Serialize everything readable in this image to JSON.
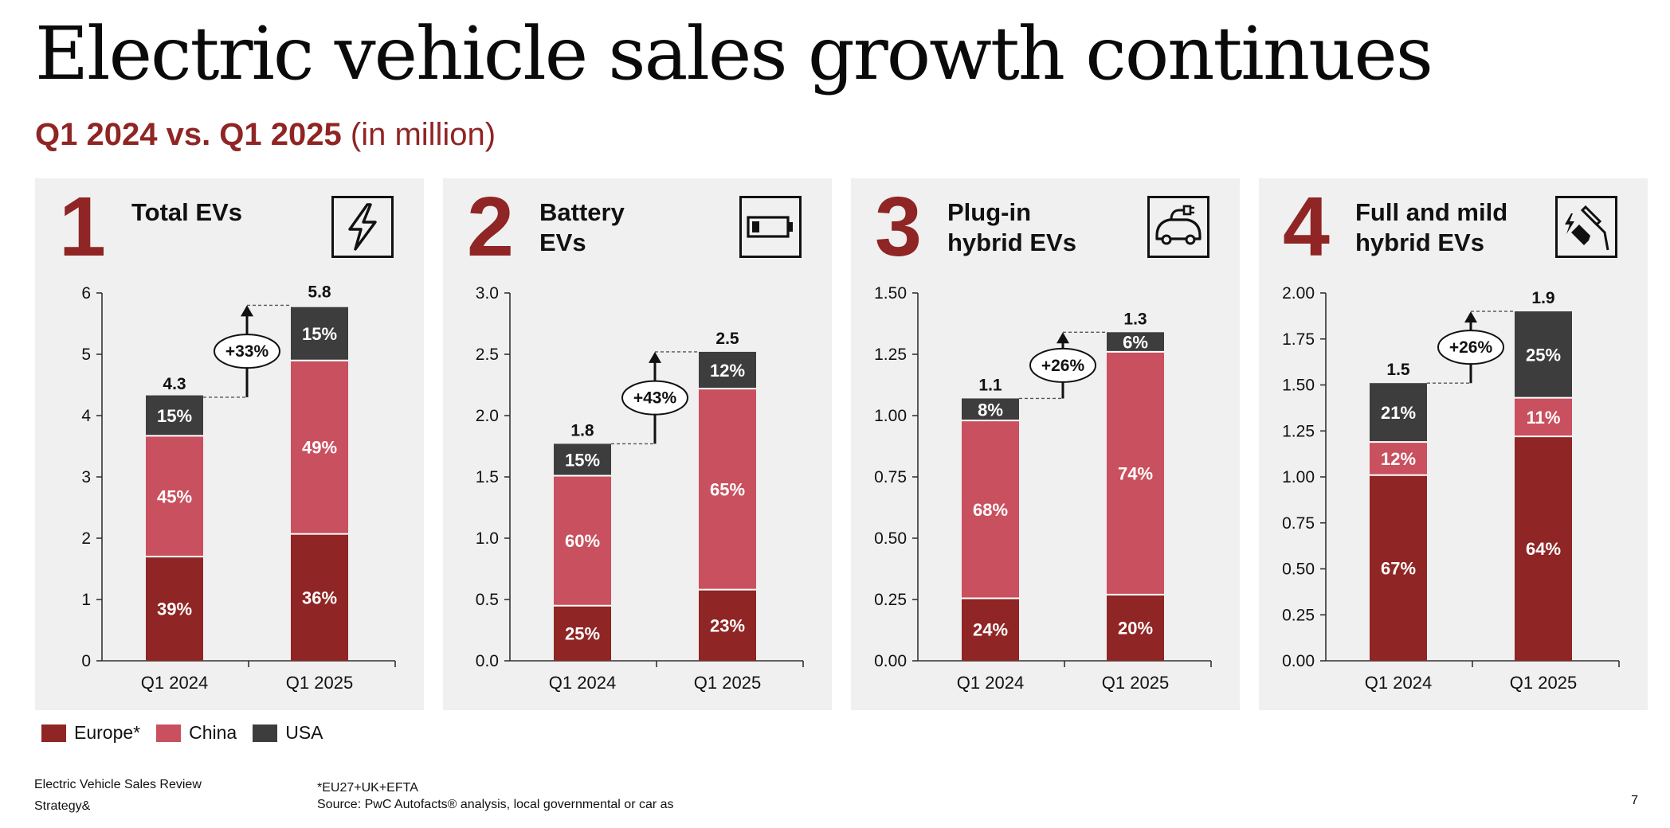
{
  "title": "Electric vehicle sales growth continues",
  "subtitle": {
    "bold": "Q1 2024 vs. Q1 2025",
    "regular": "(in million)"
  },
  "colors": {
    "Europe": "#8f2524",
    "China": "#c9505e",
    "USA": "#3d3d3d",
    "brand": "#8f2524",
    "panel_bg": "#f0f0f0"
  },
  "panels": [
    {
      "number": "1",
      "title_lines": [
        "Total EVs"
      ],
      "icon": "lightning-icon"
    },
    {
      "number": "2",
      "title_lines": [
        "Battery",
        "EVs"
      ],
      "icon": "battery-icon"
    },
    {
      "number": "3",
      "title_lines": [
        "Plug-in",
        "hybrid EVs"
      ],
      "icon": "plug-car-icon"
    },
    {
      "number": "4",
      "title_lines": [
        "Full and mild",
        "hybrid EVs"
      ],
      "icon": "fuel-electric-icon"
    }
  ],
  "chart_data": [
    {
      "type": "bar",
      "stacked": true,
      "categories": [
        "Q1 2024",
        "Q1 2025"
      ],
      "ylim": [
        0,
        6
      ],
      "yticks": [
        "0",
        "1",
        "2",
        "3",
        "4",
        "5",
        "6"
      ],
      "totals": [
        4.3,
        5.8
      ],
      "total_labels": [
        "4.3",
        "5.8"
      ],
      "series": [
        {
          "name": "Europe*",
          "values": [
            1.7,
            2.07
          ],
          "labels": [
            "39%",
            "36%"
          ]
        },
        {
          "name": "China",
          "values": [
            1.97,
            2.83
          ],
          "labels": [
            "45%",
            "49%"
          ]
        },
        {
          "name": "USA",
          "values": [
            0.66,
            0.87
          ],
          "labels": [
            "15%",
            "15%"
          ]
        }
      ],
      "growth": "+33%"
    },
    {
      "type": "bar",
      "stacked": true,
      "categories": [
        "Q1 2024",
        "Q1 2025"
      ],
      "ylim": [
        0,
        3
      ],
      "yticks": [
        "0.0",
        "0.5",
        "1.0",
        "1.5",
        "2.0",
        "2.5",
        "3.0"
      ],
      "totals": [
        1.77,
        2.52
      ],
      "total_labels": [
        "1.8",
        "2.5"
      ],
      "series": [
        {
          "name": "Europe*",
          "values": [
            0.45,
            0.58
          ],
          "labels": [
            "25%",
            "23%"
          ]
        },
        {
          "name": "China",
          "values": [
            1.06,
            1.64
          ],
          "labels": [
            "60%",
            "65%"
          ]
        },
        {
          "name": "USA",
          "values": [
            0.26,
            0.3
          ],
          "labels": [
            "15%",
            "12%"
          ]
        }
      ],
      "growth": "+43%"
    },
    {
      "type": "bar",
      "stacked": true,
      "categories": [
        "Q1 2024",
        "Q1 2025"
      ],
      "ylim": [
        0,
        1.5
      ],
      "yticks": [
        "0.00",
        "0.25",
        "0.50",
        "0.75",
        "1.00",
        "1.25",
        "1.50"
      ],
      "totals": [
        1.07,
        1.34
      ],
      "total_labels": [
        "1.1",
        "1.3"
      ],
      "series": [
        {
          "name": "Europe*",
          "values": [
            0.255,
            0.27
          ],
          "labels": [
            "24%",
            "20%"
          ]
        },
        {
          "name": "China",
          "values": [
            0.725,
            0.99
          ],
          "labels": [
            "68%",
            "74%"
          ]
        },
        {
          "name": "USA",
          "values": [
            0.09,
            0.08
          ],
          "labels": [
            "8%",
            "6%"
          ]
        }
      ],
      "growth": "+26%"
    },
    {
      "type": "bar",
      "stacked": true,
      "categories": [
        "Q1 2024",
        "Q1 2025"
      ],
      "ylim": [
        0,
        2
      ],
      "yticks": [
        "0.00",
        "0.25",
        "0.50",
        "0.75",
        "1.00",
        "1.25",
        "1.50",
        "1.75",
        "2.00"
      ],
      "totals": [
        1.51,
        1.9
      ],
      "total_labels": [
        "1.5",
        "1.9"
      ],
      "series": [
        {
          "name": "Europe*",
          "values": [
            1.01,
            1.22
          ],
          "labels": [
            "67%",
            "64%"
          ]
        },
        {
          "name": "China",
          "values": [
            0.18,
            0.21
          ],
          "labels": [
            "12%",
            "11%"
          ]
        },
        {
          "name": "USA",
          "values": [
            0.32,
            0.47
          ],
          "labels": [
            "21%",
            "25%"
          ]
        }
      ],
      "growth": "+26%"
    }
  ],
  "legend": [
    {
      "label": "Europe*",
      "color": "#8f2524"
    },
    {
      "label": "China",
      "color": "#c9505e"
    },
    {
      "label": "USA",
      "color": "#3d3d3d"
    }
  ],
  "footer": {
    "left_line1": "Electric Vehicle Sales Review",
    "left_line2": "Strategy&",
    "footnote": "*EU27+UK+EFTA",
    "source": "Source: PwC Autofacts® analysis, local governmental or car as",
    "page": "7"
  }
}
